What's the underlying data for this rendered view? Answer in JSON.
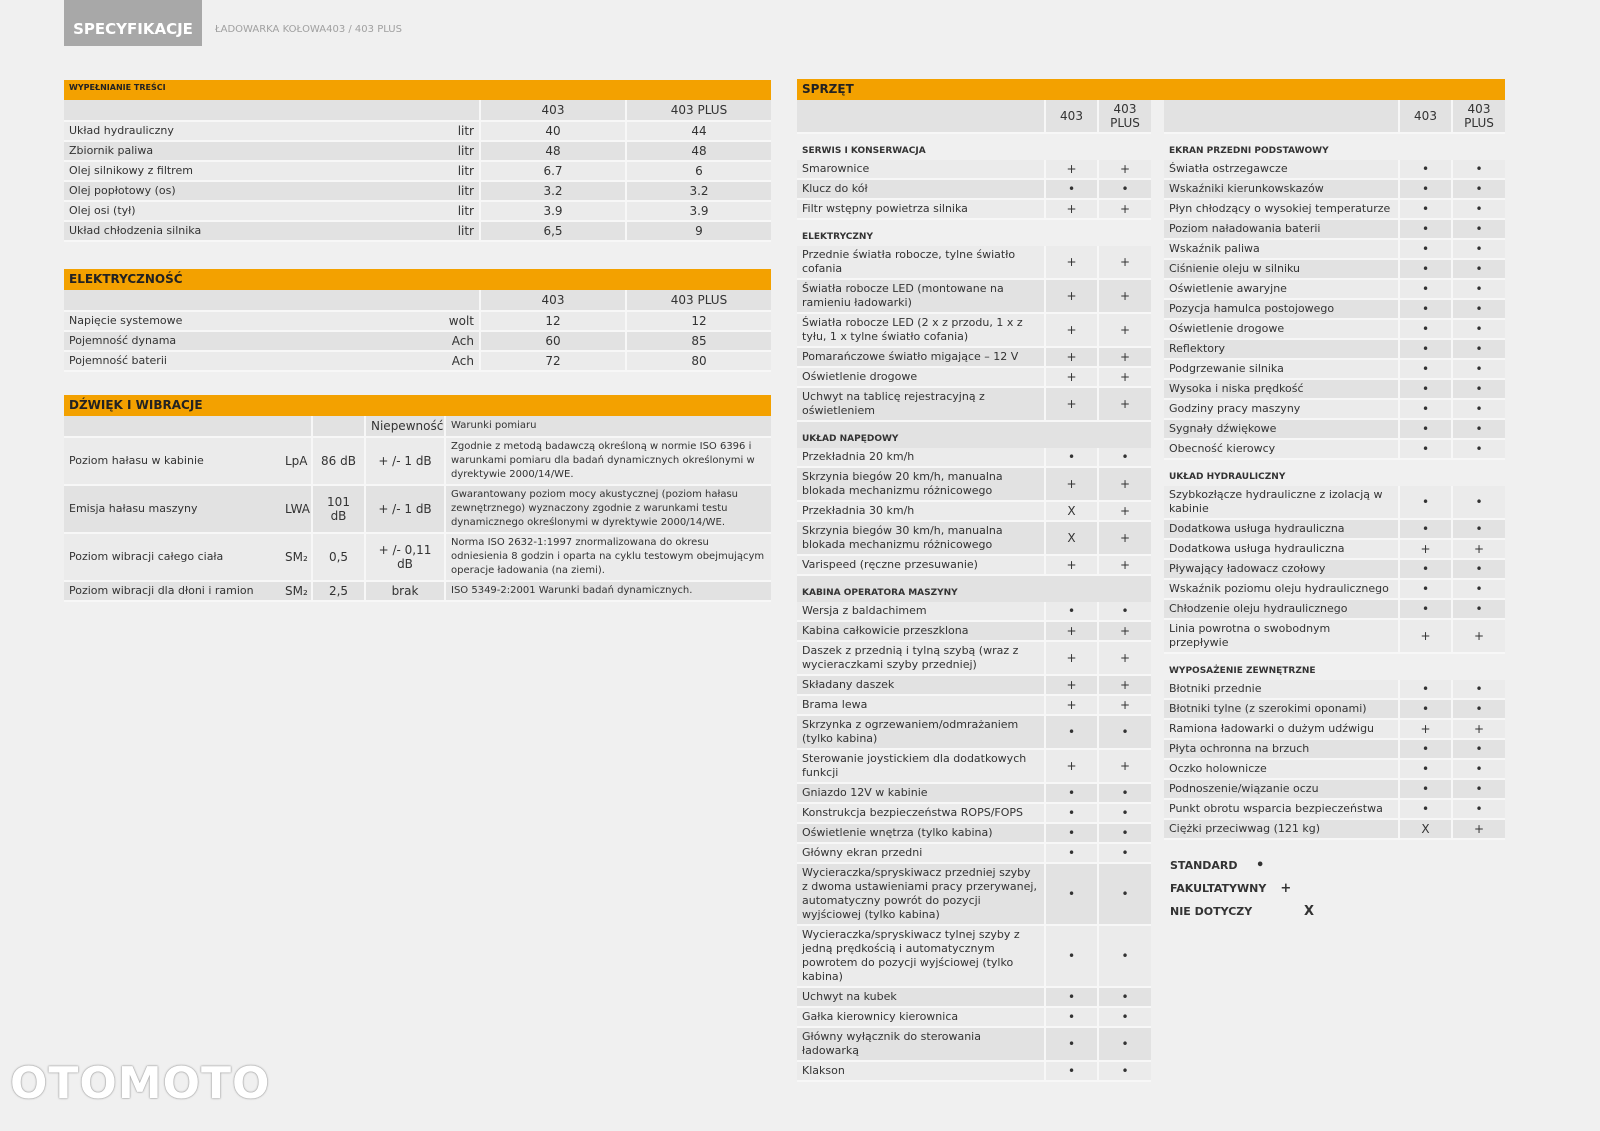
{
  "header": {
    "tab": "SPECYFIKACJE",
    "subtitle": "ŁADOWARKA KOŁOWA403 / 403 PLUS"
  },
  "fluids": {
    "title": "WYPEŁNIANIE TREŚCI",
    "columns": [
      "403",
      "403 PLUS"
    ],
    "rows": [
      [
        "Układ hydrauliczny",
        "litr",
        "40",
        "44"
      ],
      [
        "Zbiornik paliwa",
        "litr",
        "48",
        "48"
      ],
      [
        "Olej silnikowy z filtrem",
        "litr",
        "6.7",
        "6"
      ],
      [
        "Olej popłotowy (os)",
        "litr",
        "3.2",
        "3.2"
      ],
      [
        "Olej osi (tył)",
        "litr",
        "3.9",
        "3.9"
      ],
      [
        "Układ chłodzenia silnika",
        "litr",
        "6,5",
        "9"
      ]
    ]
  },
  "electrical": {
    "title": "ELEKTRYCZNOŚĆ",
    "columns": [
      "403",
      "403 PLUS"
    ],
    "rows": [
      [
        "Napięcie systemowe",
        "wolt",
        "12",
        "12"
      ],
      [
        "Pojemność dynama",
        "Ach",
        "60",
        "85"
      ],
      [
        "Pojemność baterii",
        "Ach",
        "72",
        "80"
      ]
    ]
  },
  "sound": {
    "title": "DŹWIĘK I WIBRACJE",
    "columns": [
      "Niepewność",
      "Warunki pomiaru"
    ],
    "rows": [
      [
        "Poziom hałasu w kabinie",
        "LpA",
        "86 dB",
        "+ /- 1 dB",
        "Zgodnie z metodą badawczą określoną w normie ISO 6396 i warunkami pomiaru dla badań dynamicznych określonymi w dyrektywie 2000/14/WE."
      ],
      [
        "Emisja hałasu maszyny",
        "LWA",
        "101 dB",
        "+ /- 1 dB",
        "Gwarantowany poziom mocy akustycznej (poziom hałasu zewnętrznego) wyznaczony zgodnie z warunkami testu dynamicznego określonymi w dyrektywie 2000/14/WE."
      ],
      [
        "Poziom wibracji całego ciała",
        "SM₂",
        "0,5",
        "+ /- 0,11 dB",
        "Norma ISO 2632-1:1997 znormalizowana do okresu odniesienia 8 godzin i oparta na cyklu testowym obejmującym operacje ładowania (na ziemi)."
      ],
      [
        "Poziom wibracji dla dłoni i ramion",
        "SM₂",
        "2,5",
        "brak",
        "ISO 5349-2:2001 Warunki badań dynamicznych."
      ]
    ]
  },
  "equipment": {
    "title": "SPRZĘT",
    "columns": [
      "403",
      "403 PLUS"
    ],
    "left": [
      {
        "heading": "SERWIS I KONSERWACJA",
        "rows": [
          [
            "Smarownice",
            "+",
            "+"
          ],
          [
            "Klucz do kół",
            "•",
            "•"
          ],
          [
            "Filtr wstępny powietrza silnika",
            "+",
            "+"
          ]
        ]
      },
      {
        "heading": "ELEKTRYCZNY",
        "rows": [
          [
            "Przednie światła robocze, tylne światło cofania",
            "+",
            "+"
          ],
          [
            "Światła robocze LED (montowane na ramieniu ładowarki)",
            "+",
            "+"
          ],
          [
            "Światła robocze LED (2 x z przodu, 1 x z tyłu, 1 x tylne światło cofania)",
            "+",
            "+"
          ],
          [
            "Pomarańczowe światło migające – 12 V",
            "+",
            "+"
          ],
          [
            "Oświetlenie drogowe",
            "+",
            "+"
          ],
          [
            "Uchwyt na tablicę rejestracyjną z oświetleniem",
            "+",
            "+"
          ]
        ]
      },
      {
        "heading": "UKŁAD NAPĘDOWY",
        "rows": [
          [
            "Przekładnia 20 km/h",
            "•",
            "•"
          ],
          [
            "Skrzynia biegów 20 km/h, manualna blokada mechanizmu różnicowego",
            "+",
            "+"
          ],
          [
            "Przekładnia 30 km/h",
            "X",
            "+"
          ],
          [
            "Skrzynia biegów 30 km/h, manualna blokada mechanizmu różnicowego",
            "X",
            "+"
          ],
          [
            "Varispeed (ręczne przesuwanie)",
            "+",
            "+"
          ]
        ]
      },
      {
        "heading": "KABINA OPERATORA MASZYNY",
        "rows": [
          [
            "Wersja z baldachimem",
            "•",
            "•"
          ],
          [
            "Kabina całkowicie przeszklona",
            "+",
            "+"
          ],
          [
            "Daszek z przednią i tylną szybą (wraz z wycieraczkami szyby przedniej)",
            "+",
            "+"
          ],
          [
            "Składany daszek",
            "+",
            "+"
          ],
          [
            "Brama lewa",
            "+",
            "+"
          ],
          [
            "Skrzynka z ogrzewaniem/odmrażaniem (tylko kabina)",
            "•",
            "•"
          ],
          [
            "Sterowanie joystickiem dla dodatkowych funkcji",
            "+",
            "+"
          ],
          [
            "Gniazdo 12V w kabinie",
            "•",
            "•"
          ],
          [
            "Konstrukcja bezpieczeństwa ROPS/FOPS",
            "•",
            "•"
          ],
          [
            "Oświetlenie wnętrza (tylko kabina)",
            "•",
            "•"
          ],
          [
            "Główny ekran przedni",
            "•",
            "•"
          ],
          [
            "Wycieraczka/spryskiwacz przedniej szyby z dwoma ustawieniami pracy przerywanej, automatyczny powrót do pozycji wyjściowej (tylko kabina)",
            "•",
            "•"
          ],
          [
            "Wycieraczka/spryskiwacz tylnej szyby z jedną prędkością i automatycznym powrotem do pozycji wyjściowej (tylko kabina)",
            "•",
            "•"
          ],
          [
            "Uchwyt na kubek",
            "•",
            "•"
          ],
          [
            "Gałka kierownicy kierownica",
            "•",
            "•"
          ],
          [
            "Główny wyłącznik do sterowania ładowarką",
            "•",
            "•"
          ],
          [
            "Klakson",
            "•",
            "•"
          ]
        ]
      }
    ],
    "right": [
      {
        "heading": "EKRAN PRZEDNI PODSTAWOWY",
        "rows": [
          [
            "Światła ostrzegawcze",
            "•",
            "•"
          ],
          [
            "Wskaźniki kierunkowskazów",
            "•",
            "•"
          ],
          [
            "Płyn chłodzący o wysokiej temperaturze",
            "•",
            "•"
          ],
          [
            "Poziom naładowania baterii",
            "•",
            "•"
          ],
          [
            "Wskaźnik paliwa",
            "•",
            "•"
          ],
          [
            "Ciśnienie oleju w silniku",
            "•",
            "•"
          ],
          [
            "Oświetlenie awaryjne",
            "•",
            "•"
          ],
          [
            "Pozycja hamulca postojowego",
            "•",
            "•"
          ],
          [
            "Oświetlenie drogowe",
            "•",
            "•"
          ],
          [
            "Reflektory",
            "•",
            "•"
          ],
          [
            "Podgrzewanie silnika",
            "•",
            "•"
          ],
          [
            "Wysoka i niska prędkość",
            "•",
            "•"
          ],
          [
            "Godziny pracy maszyny",
            "•",
            "•"
          ],
          [
            "Sygnały dźwiękowe",
            "•",
            "•"
          ],
          [
            "Obecność kierowcy",
            "•",
            "•"
          ]
        ]
      },
      {
        "heading": "UKŁAD HYDRAULICZNY",
        "rows": [
          [
            "Szybkozłącze hydrauliczne z izolacją w kabinie",
            "•",
            "•"
          ],
          [
            "Dodatkowa usługa hydrauliczna",
            "•",
            "•"
          ],
          [
            "Dodatkowa usługa hydrauliczna",
            "+",
            "+"
          ],
          [
            "Pływający ładowacz czołowy",
            "•",
            "•"
          ],
          [
            "Wskaźnik poziomu oleju hydraulicznego",
            "•",
            "•"
          ],
          [
            "Chłodzenie oleju hydraulicznego",
            "•",
            "•"
          ],
          [
            "Linia powrotna o swobodnym przepływie",
            "+",
            "+"
          ]
        ]
      },
      {
        "heading": "WYPOSAŻENIE ZEWNĘTRZNE",
        "rows": [
          [
            "Błotniki przednie",
            "•",
            "•"
          ],
          [
            "Błotniki tylne (z szerokimi oponami)",
            "•",
            "•"
          ],
          [
            "Ramiona ładowarki o dużym udźwigu",
            "+",
            "+"
          ],
          [
            "Płyta ochronna na brzuch",
            "•",
            "•"
          ],
          [
            "Oczko holownicze",
            "•",
            "•"
          ],
          [
            "Podnoszenie/wiązanie oczu",
            "•",
            "•"
          ],
          [
            "Punkt obrotu wsparcia bezpieczeństwa",
            "•",
            "•"
          ],
          [
            "Ciężki przeciwwag (121 kg)",
            "X",
            "+"
          ]
        ]
      }
    ],
    "legend": [
      [
        "STANDARD",
        "•"
      ],
      [
        "FAKULTATYWNY",
        "+"
      ],
      [
        "NIE DOTYCZY",
        "X"
      ]
    ]
  },
  "watermark": "OTOMOTO"
}
